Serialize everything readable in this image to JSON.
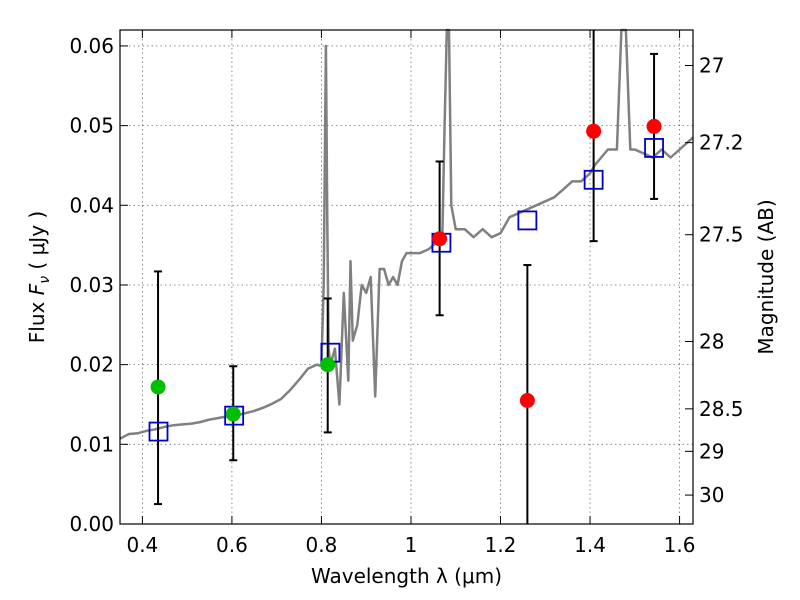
{
  "chart_data": {
    "type": "scatter",
    "title": "",
    "xlabel": "Wavelength  λ (μm)",
    "ylabel_left_text": "Flux  ",
    "ylabel_left_math": "F",
    "ylabel_left_math_sub": "ν",
    "ylabel_left_unit": "  ( μJy )",
    "ylabel_right": "Magnitude (AB)",
    "xlim": [
      0.35,
      1.63
    ],
    "ylim": [
      0.0,
      0.062
    ],
    "grid": true,
    "colors": {
      "spectrum": "#808080",
      "green": "#00bf00",
      "red": "#ff0000",
      "model_box": "#0000cc",
      "errorbar": "#000000"
    },
    "x_ticks": [
      {
        "value": 0.4,
        "label": "0.4"
      },
      {
        "value": 0.6,
        "label": "0.6"
      },
      {
        "value": 0.8,
        "label": "0.8"
      },
      {
        "value": 1.0,
        "label": "1"
      },
      {
        "value": 1.2,
        "label": "1.2"
      },
      {
        "value": 1.4,
        "label": "1.4"
      },
      {
        "value": 1.6,
        "label": "1.6"
      }
    ],
    "y_ticks": [
      {
        "value": 0.0,
        "label": "0.00"
      },
      {
        "value": 0.01,
        "label": "0.01"
      },
      {
        "value": 0.02,
        "label": "0.02"
      },
      {
        "value": 0.03,
        "label": "0.03"
      },
      {
        "value": 0.04,
        "label": "0.04"
      },
      {
        "value": 0.05,
        "label": "0.05"
      },
      {
        "value": 0.06,
        "label": "0.06"
      }
    ],
    "mag_ticks": [
      {
        "mag": 27,
        "label": "27"
      },
      {
        "mag": 27.2,
        "label": "27.2"
      },
      {
        "mag": 27.5,
        "label": "27.5"
      },
      {
        "mag": 28,
        "label": "28"
      },
      {
        "mag": 28.5,
        "label": "28.5"
      },
      {
        "mag": 29,
        "label": "29"
      },
      {
        "mag": 30,
        "label": "30"
      }
    ],
    "series": [
      {
        "kind": "spectrum",
        "x": [
          0.35,
          0.37,
          0.39,
          0.41,
          0.43,
          0.45,
          0.47,
          0.49,
          0.51,
          0.53,
          0.55,
          0.57,
          0.59,
          0.61,
          0.63,
          0.65,
          0.67,
          0.69,
          0.71,
          0.73,
          0.75,
          0.77,
          0.79,
          0.8,
          0.805,
          0.81,
          0.813,
          0.816,
          0.82,
          0.83,
          0.84,
          0.85,
          0.86,
          0.865,
          0.87,
          0.88,
          0.89,
          0.9,
          0.91,
          0.92,
          0.93,
          0.94,
          0.95,
          0.96,
          0.97,
          0.98,
          0.99,
          1.0,
          1.02,
          1.04,
          1.06,
          1.07,
          1.075,
          1.08,
          1.085,
          1.09,
          1.1,
          1.12,
          1.14,
          1.16,
          1.18,
          1.2,
          1.22,
          1.24,
          1.26,
          1.28,
          1.3,
          1.32,
          1.34,
          1.36,
          1.38,
          1.4,
          1.41,
          1.44,
          1.46,
          1.47,
          1.48,
          1.49,
          1.5,
          1.52,
          1.54,
          1.56,
          1.58,
          1.6,
          1.62,
          1.63
        ],
        "y": [
          0.0107,
          0.0113,
          0.0114,
          0.0117,
          0.0119,
          0.0122,
          0.0124,
          0.0125,
          0.0126,
          0.0128,
          0.0131,
          0.0133,
          0.0135,
          0.0136,
          0.0139,
          0.0142,
          0.0146,
          0.0151,
          0.0157,
          0.0168,
          0.0181,
          0.0195,
          0.02,
          0.0198,
          0.03,
          0.06,
          0.038,
          0.022,
          0.02,
          0.022,
          0.015,
          0.029,
          0.018,
          0.033,
          0.023,
          0.025,
          0.03,
          0.029,
          0.031,
          0.016,
          0.032,
          0.032,
          0.03,
          0.031,
          0.03,
          0.033,
          0.034,
          0.034,
          0.034,
          0.0345,
          0.0355,
          0.036,
          0.05,
          0.064,
          0.064,
          0.04,
          0.037,
          0.037,
          0.036,
          0.037,
          0.036,
          0.0365,
          0.0385,
          0.039,
          0.0395,
          0.04,
          0.0405,
          0.041,
          0.042,
          0.043,
          0.043,
          0.044,
          0.045,
          0.047,
          0.047,
          0.064,
          0.064,
          0.047,
          0.047,
          0.0465,
          0.046,
          0.047,
          0.046,
          0.047,
          0.048,
          0.0485
        ]
      },
      {
        "kind": "observed",
        "color_key": "green",
        "points": [
          {
            "x": 0.435,
            "y": 0.0172,
            "err_lo": 0.0025,
            "err_hi": 0.0317
          },
          {
            "x": 0.603,
            "y": 0.0138,
            "err_lo": 0.008,
            "err_hi": 0.0198
          },
          {
            "x": 0.814,
            "y": 0.02,
            "err_lo": 0.0115,
            "err_hi": 0.0283
          }
        ]
      },
      {
        "kind": "observed",
        "color_key": "red",
        "points": [
          {
            "x": 1.064,
            "y": 0.0358,
            "err_lo": 0.0262,
            "err_hi": 0.0455
          },
          {
            "x": 1.26,
            "y": 0.0155,
            "err_lo": 0.0,
            "err_hi": 0.0325
          },
          {
            "x": 1.408,
            "y": 0.0493,
            "err_lo": 0.0355,
            "err_hi": 0.064
          },
          {
            "x": 1.543,
            "y": 0.0499,
            "err_lo": 0.0408,
            "err_hi": 0.059
          }
        ]
      },
      {
        "kind": "model",
        "color_key": "model_box",
        "points": [
          {
            "x": 0.436,
            "y": 0.0116
          },
          {
            "x": 0.605,
            "y": 0.0136
          },
          {
            "x": 0.82,
            "y": 0.0215
          },
          {
            "x": 1.068,
            "y": 0.0353
          },
          {
            "x": 1.26,
            "y": 0.0381
          },
          {
            "x": 1.408,
            "y": 0.0432
          },
          {
            "x": 1.543,
            "y": 0.0472
          }
        ]
      }
    ]
  }
}
